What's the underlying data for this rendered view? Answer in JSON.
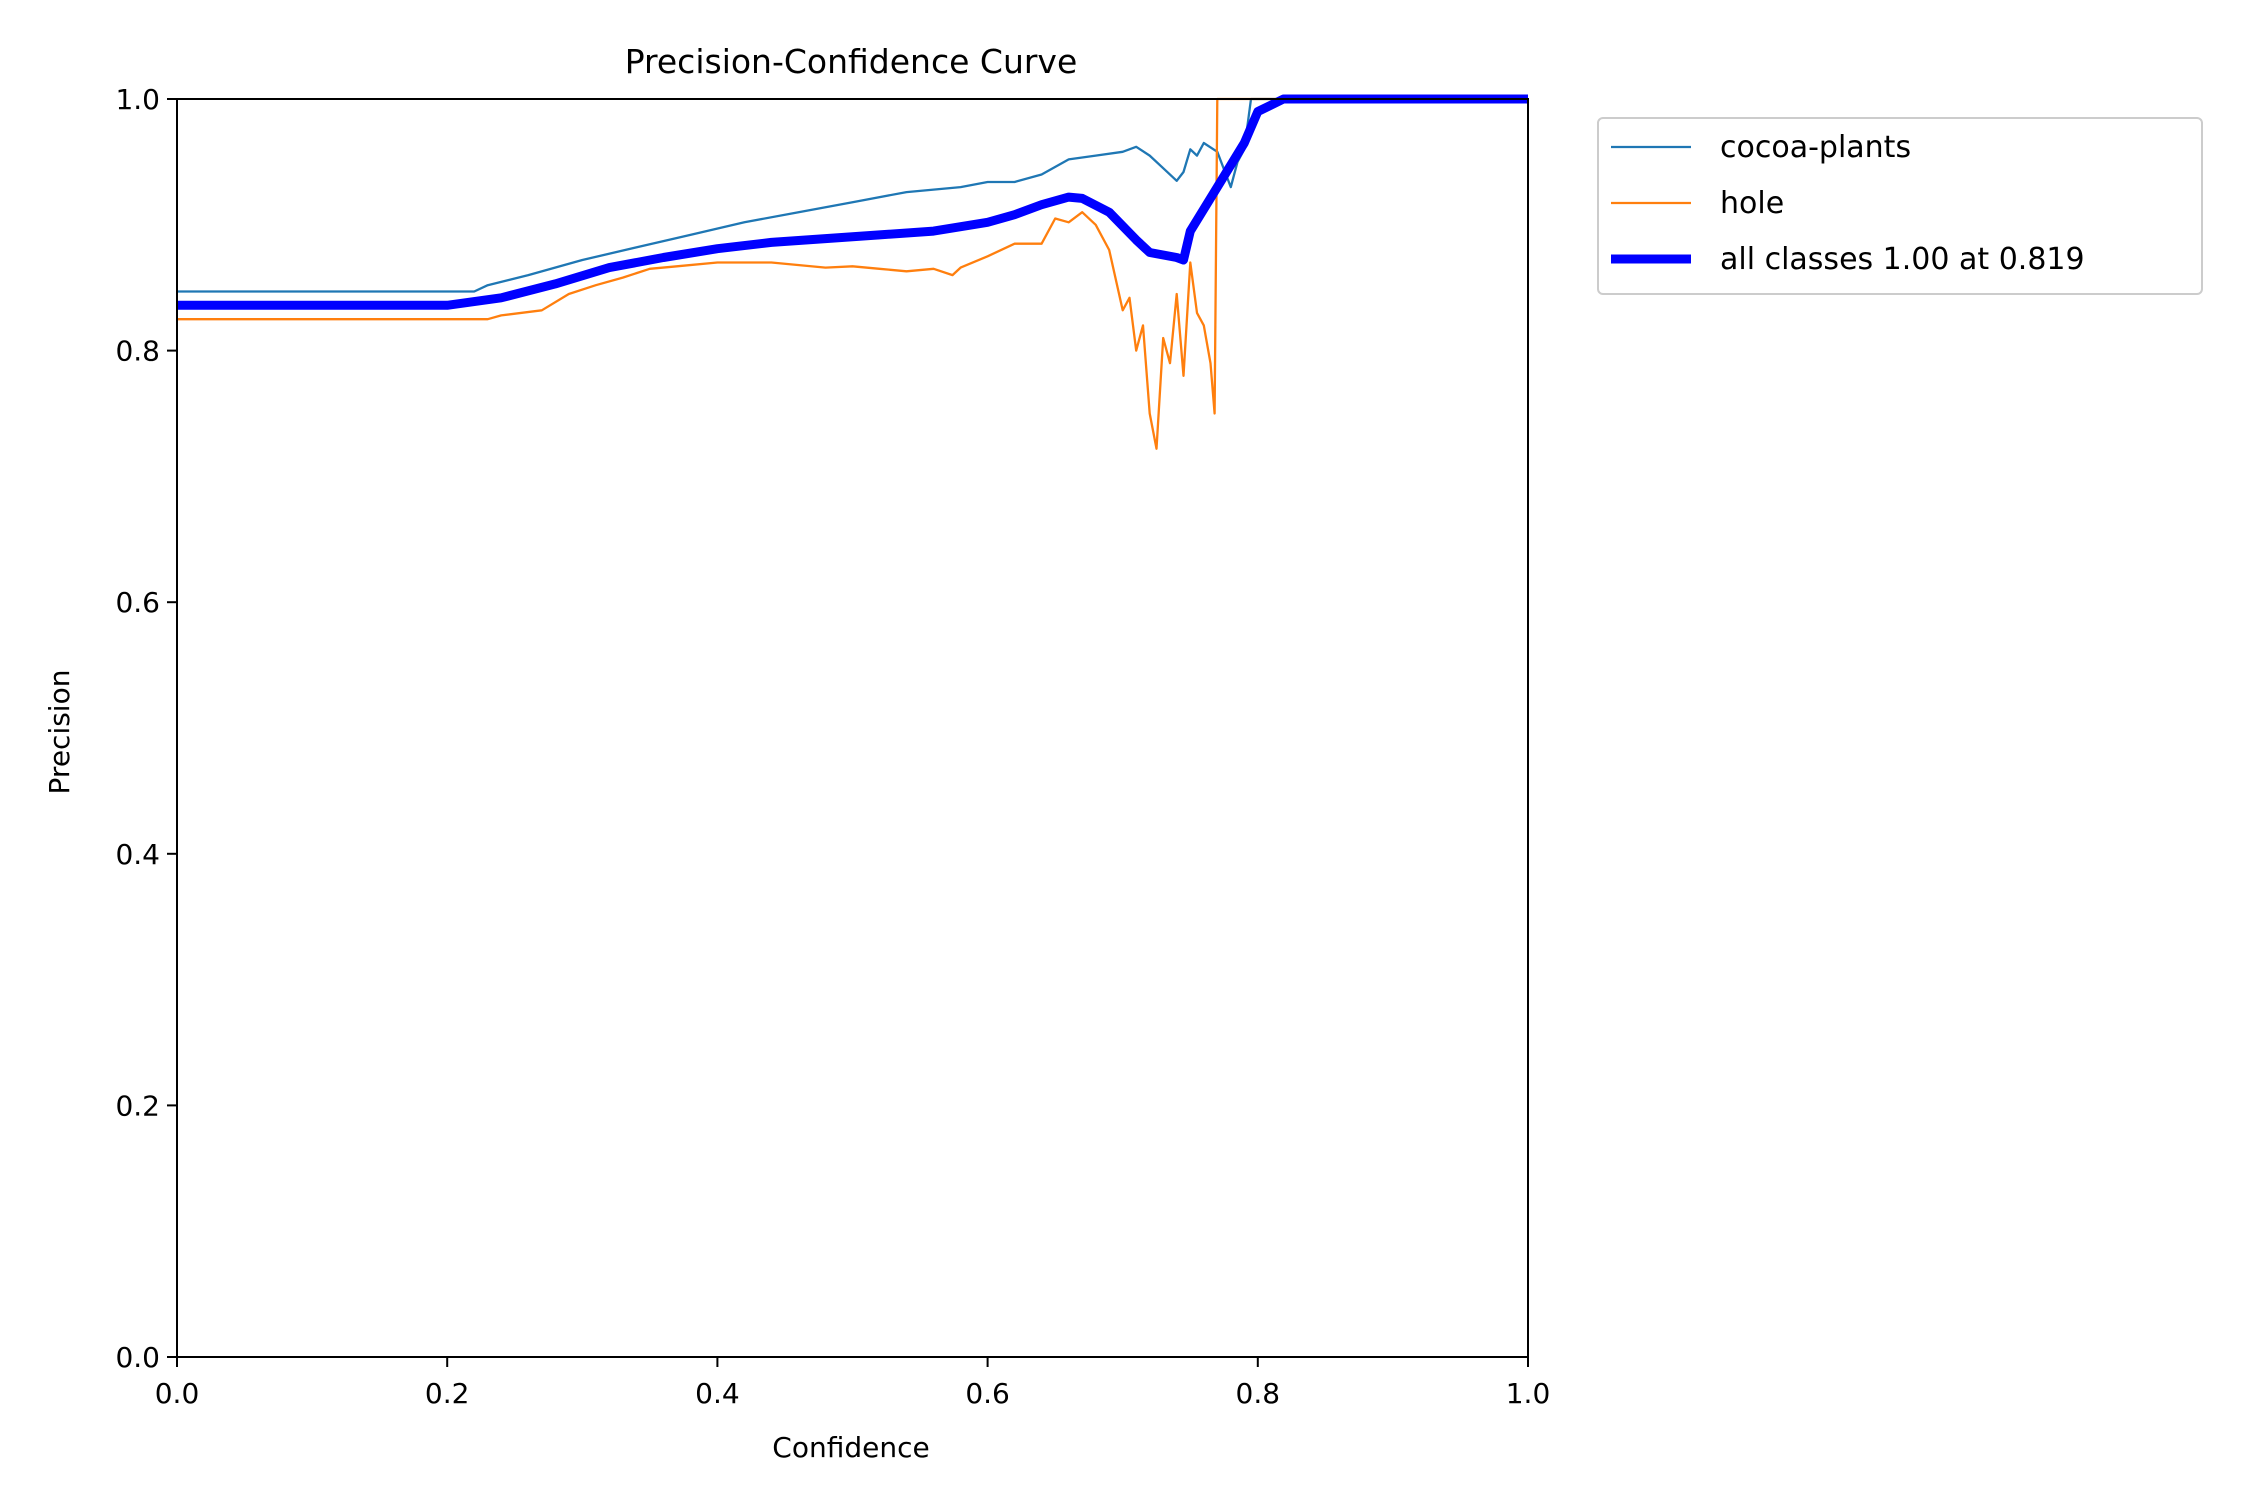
{
  "chart_data": {
    "type": "line",
    "title": "Precision-Confidence Curve",
    "xlabel": "Confidence",
    "ylabel": "Precision",
    "xlim": [
      0,
      1
    ],
    "ylim": [
      0,
      1
    ],
    "xticks": [
      "0.0",
      "0.2",
      "0.4",
      "0.6",
      "0.8",
      "1.0"
    ],
    "yticks": [
      "0.0",
      "0.2",
      "0.4",
      "0.6",
      "0.8",
      "1.0"
    ],
    "grid": false,
    "legend_position": "outside-top-right",
    "series": [
      {
        "name": "cocoa-plants",
        "color": "#1f77b4",
        "x": [
          0.0,
          0.1,
          0.22,
          0.23,
          0.26,
          0.3,
          0.34,
          0.38,
          0.42,
          0.46,
          0.5,
          0.54,
          0.58,
          0.6,
          0.62,
          0.64,
          0.66,
          0.68,
          0.7,
          0.71,
          0.72,
          0.73,
          0.74,
          0.745,
          0.75,
          0.755,
          0.76,
          0.77,
          0.78,
          0.785,
          0.79,
          0.795,
          0.8,
          1.0
        ],
        "y": [
          0.847,
          0.847,
          0.847,
          0.852,
          0.86,
          0.872,
          0.882,
          0.892,
          0.902,
          0.91,
          0.918,
          0.926,
          0.93,
          0.934,
          0.934,
          0.94,
          0.952,
          0.955,
          0.958,
          0.962,
          0.955,
          0.945,
          0.935,
          0.942,
          0.96,
          0.955,
          0.965,
          0.958,
          0.93,
          0.95,
          0.96,
          1.0,
          1.0,
          1.0
        ]
      },
      {
        "name": "hole",
        "color": "#ff7f0e",
        "x": [
          0.0,
          0.1,
          0.23,
          0.24,
          0.27,
          0.29,
          0.31,
          0.33,
          0.35,
          0.37,
          0.4,
          0.44,
          0.48,
          0.5,
          0.52,
          0.54,
          0.56,
          0.574,
          0.58,
          0.6,
          0.62,
          0.64,
          0.65,
          0.66,
          0.67,
          0.68,
          0.69,
          0.7,
          0.705,
          0.71,
          0.715,
          0.72,
          0.725,
          0.73,
          0.735,
          0.74,
          0.745,
          0.75,
          0.755,
          0.76,
          0.765,
          0.768,
          0.77,
          0.772,
          1.0
        ],
        "y": [
          0.825,
          0.825,
          0.825,
          0.828,
          0.832,
          0.845,
          0.852,
          0.858,
          0.865,
          0.867,
          0.87,
          0.87,
          0.866,
          0.867,
          0.865,
          0.863,
          0.865,
          0.86,
          0.866,
          0.875,
          0.885,
          0.885,
          0.905,
          0.902,
          0.91,
          0.9,
          0.88,
          0.832,
          0.842,
          0.8,
          0.82,
          0.75,
          0.722,
          0.81,
          0.79,
          0.845,
          0.78,
          0.87,
          0.83,
          0.82,
          0.79,
          0.75,
          1.0,
          1.0,
          1.0
        ]
      },
      {
        "name": "all classes 1.00 at 0.819",
        "color": "#0000ff",
        "x": [
          0.0,
          0.1,
          0.2,
          0.24,
          0.28,
          0.32,
          0.36,
          0.4,
          0.44,
          0.48,
          0.52,
          0.56,
          0.6,
          0.62,
          0.64,
          0.66,
          0.67,
          0.69,
          0.71,
          0.72,
          0.73,
          0.74,
          0.745,
          0.75,
          0.77,
          0.79,
          0.8,
          0.819,
          0.85,
          1.0
        ],
        "y": [
          0.836,
          0.836,
          0.836,
          0.842,
          0.853,
          0.866,
          0.874,
          0.881,
          0.886,
          0.889,
          0.892,
          0.895,
          0.902,
          0.908,
          0.916,
          0.922,
          0.921,
          0.91,
          0.888,
          0.878,
          0.876,
          0.874,
          0.872,
          0.895,
          0.93,
          0.965,
          0.99,
          1.0,
          1.0,
          1.0
        ]
      }
    ]
  }
}
